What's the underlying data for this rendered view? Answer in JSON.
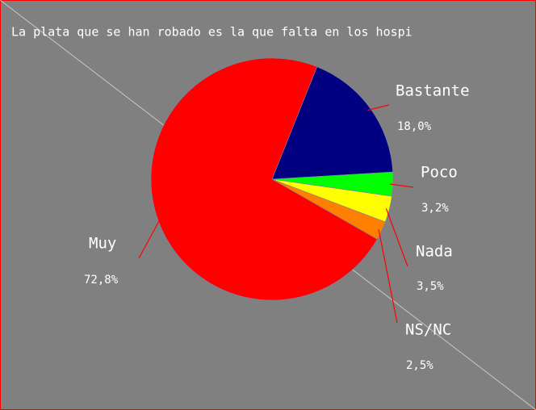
{
  "chart_data": {
    "type": "pie",
    "title": "La plata que se han robado es la que falta en los hospi",
    "categories": [
      "Bastante",
      "Poco",
      "Nada",
      "NS/NC",
      "Muy"
    ],
    "values": [
      18.0,
      3.2,
      3.5,
      2.5,
      72.8
    ],
    "value_labels": [
      "18,0%",
      "3,2%",
      "3,5%",
      "2,5%",
      "72,8%"
    ],
    "colors": [
      "#000080",
      "#00ff00",
      "#ffff00",
      "#ff8000",
      "#ff0000"
    ]
  }
}
